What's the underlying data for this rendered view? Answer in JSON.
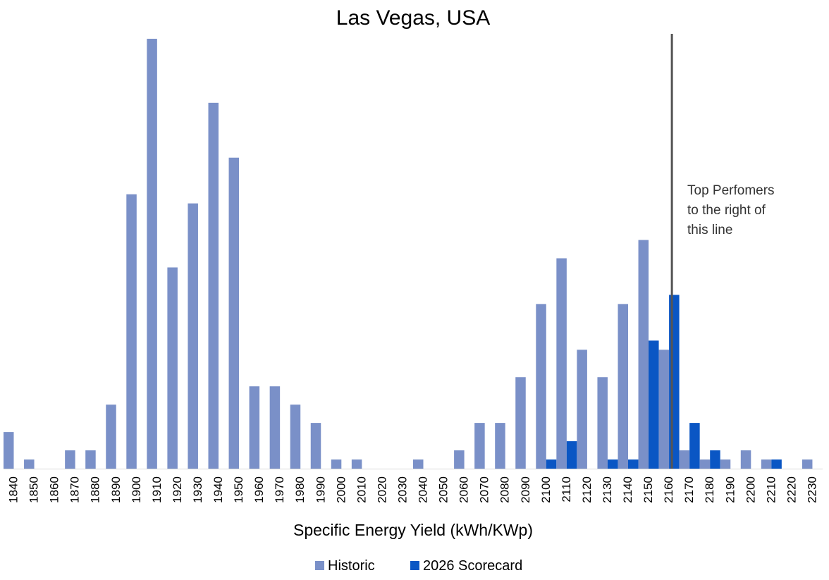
{
  "chart_data": {
    "type": "bar",
    "title": "Las Vegas, USA",
    "xlabel": "Specific Energy Yield (kWh/KWp)",
    "ylabel": "",
    "categories": [
      "1840",
      "1850",
      "1860",
      "1870",
      "1880",
      "1890",
      "1900",
      "1910",
      "1920",
      "1930",
      "1940",
      "1950",
      "1960",
      "1970",
      "1980",
      "1990",
      "2000",
      "2010",
      "2020",
      "2030",
      "2040",
      "2050",
      "2060",
      "2070",
      "2080",
      "2090",
      "2100",
      "2110",
      "2120",
      "2130",
      "2140",
      "2150",
      "2160",
      "2170",
      "2180",
      "2190",
      "2200",
      "2210",
      "2220",
      "2230"
    ],
    "series": [
      {
        "name": "Historic",
        "color": "#7a90c8",
        "values": [
          4,
          1,
          0,
          2,
          2,
          7,
          30,
          47,
          22,
          29,
          40,
          34,
          9,
          9,
          7,
          5,
          1,
          1,
          0,
          0,
          1,
          0,
          2,
          5,
          5,
          10,
          18,
          23,
          13,
          10,
          18,
          25,
          13,
          2,
          1,
          1,
          2,
          1,
          0,
          1
        ]
      },
      {
        "name": "2026 Scorecard",
        "color": "#0a56c4",
        "values": [
          0,
          0,
          0,
          0,
          0,
          0,
          0,
          0,
          0,
          0,
          0,
          0,
          0,
          0,
          0,
          0,
          0,
          0,
          0,
          0,
          0,
          0,
          0,
          0,
          0,
          0,
          1,
          3,
          0,
          1,
          1,
          14,
          19,
          5,
          2,
          0,
          0,
          1,
          0,
          0
        ]
      }
    ],
    "ylim": [
      0,
      48
    ],
    "grid": false,
    "legend": "bottom",
    "reference_line": {
      "position_category": "2160",
      "offset_fraction": 0.5,
      "color": "#555555",
      "annotation": [
        "Top Perfomers",
        "to the right of",
        "this line"
      ]
    }
  }
}
